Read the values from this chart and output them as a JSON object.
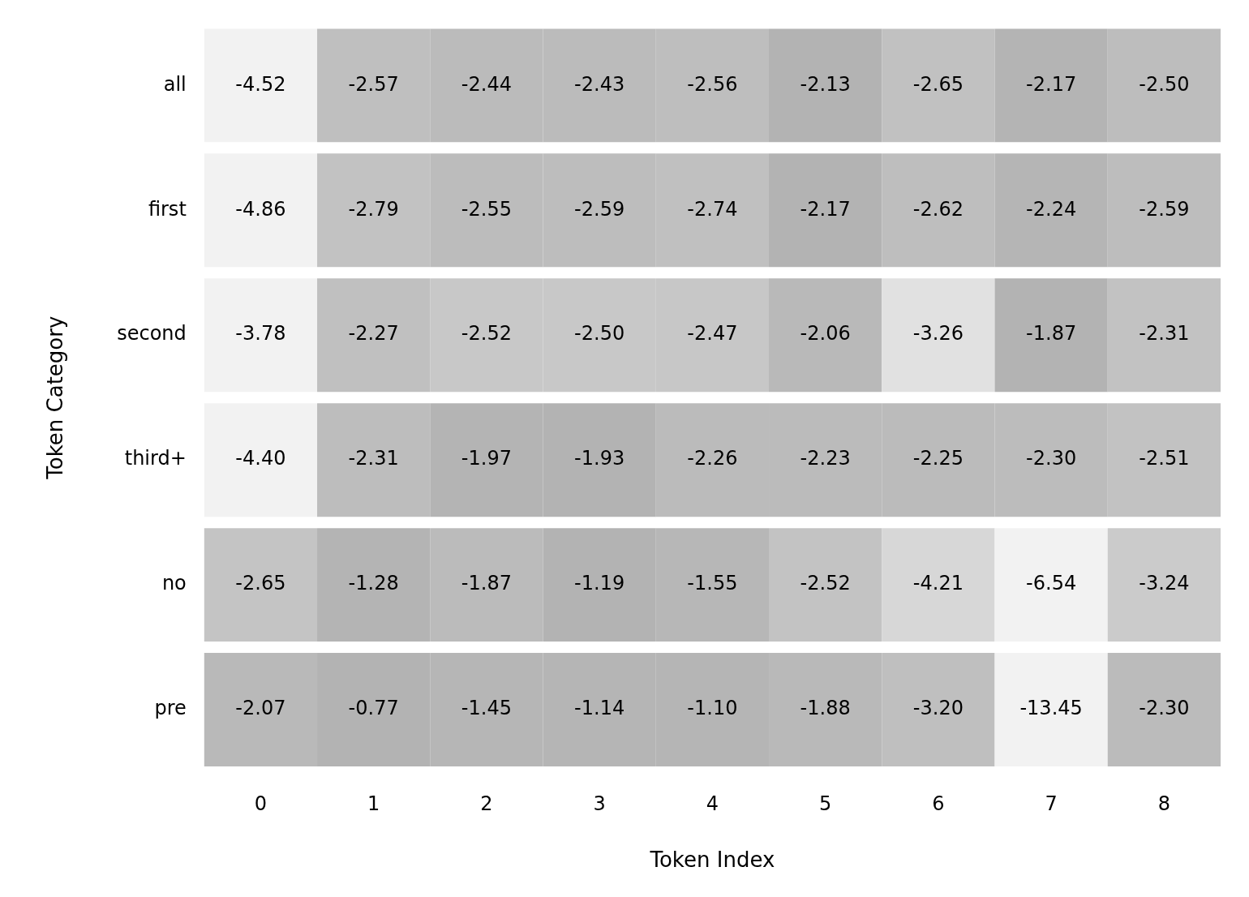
{
  "chart_data": {
    "type": "heatmap",
    "data_labels": true,
    "xlabel": "Token Index",
    "ylabel": "Token Category",
    "categories": [
      "0",
      "1",
      "2",
      "3",
      "4",
      "5",
      "6",
      "7",
      "8"
    ],
    "y_categories": [
      "all",
      "first",
      "second",
      "third+",
      "no",
      "pre"
    ],
    "cells": [
      [
        -4.52,
        -2.57,
        -2.44,
        -2.43,
        -2.56,
        -2.13,
        -2.65,
        -2.17,
        -2.5
      ],
      [
        -4.86,
        -2.79,
        -2.55,
        -2.59,
        -2.74,
        -2.17,
        -2.62,
        -2.24,
        -2.59
      ],
      [
        -3.78,
        -2.27,
        -2.52,
        -2.5,
        -2.47,
        -2.06,
        -3.26,
        -1.87,
        -2.31
      ],
      [
        -4.4,
        -2.31,
        -1.97,
        -1.93,
        -2.26,
        -2.23,
        -2.25,
        -2.3,
        -2.51
      ],
      [
        -2.65,
        -1.28,
        -1.87,
        -1.19,
        -1.55,
        -2.52,
        -4.21,
        -6.54,
        -3.24
      ],
      [
        -2.07,
        -0.77,
        -1.45,
        -1.14,
        -1.1,
        -1.88,
        -3.2,
        -13.45,
        -2.3
      ]
    ],
    "cell_labels": [
      [
        "-4.52",
        "-2.57",
        "-2.44",
        "-2.43",
        "-2.56",
        "-2.13",
        "-2.65",
        "-2.17",
        "-2.50"
      ],
      [
        "-4.86",
        "-2.79",
        "-2.55",
        "-2.59",
        "-2.74",
        "-2.17",
        "-2.62",
        "-2.24",
        "-2.59"
      ],
      [
        "-3.78",
        "-2.27",
        "-2.52",
        "-2.50",
        "-2.47",
        "-2.06",
        "-3.26",
        "-1.87",
        "-2.31"
      ],
      [
        "-4.40",
        "-2.31",
        "-1.97",
        "-1.93",
        "-2.26",
        "-2.23",
        "-2.25",
        "-2.30",
        "-2.51"
      ],
      [
        "-2.65",
        "-1.28",
        "-1.87",
        "-1.19",
        "-1.55",
        "-2.52",
        "-4.21",
        "-6.54",
        "-3.24"
      ],
      [
        "-2.07",
        "-0.77",
        "-1.45",
        "-1.14",
        "-1.10",
        "-1.88",
        "-3.20",
        "-13.45",
        "-2.30"
      ]
    ]
  }
}
